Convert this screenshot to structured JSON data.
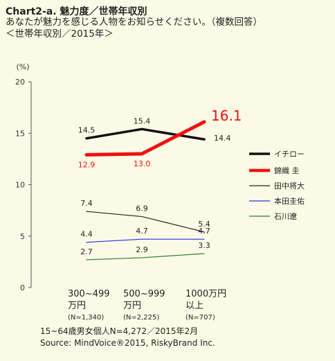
{
  "header": {
    "title": "Chart2-a. 魅力度／世帯年収別",
    "subtitle_line1": "あなたが魅力を感じる人物をお知らせください。（複数回答）",
    "subtitle_line2": "＜世帯年収別／2015年＞"
  },
  "footer": {
    "note": "15~64歳男女個人N=4,272／2015年2月",
    "source": "Source: MindVoice®2015, RiskyBrand Inc."
  },
  "colors": {
    "background": "#fbfae6",
    "axis": "#555555",
    "text": "#222222"
  },
  "chart_data": {
    "type": "line",
    "title": "Chart2-a. 魅力度／世帯年収別",
    "ylabel": "(%)",
    "ylim": [
      0,
      20
    ],
    "yticks": [
      0,
      5,
      10,
      15,
      20
    ],
    "grid": false,
    "legend_position": "right",
    "categories": [
      {
        "line1": "300~499",
        "line2": "万円",
        "n": "(N=1,340)"
      },
      {
        "line1": "500~999",
        "line2": "万円",
        "n": "(N=2,225)"
      },
      {
        "line1": "1000万円",
        "line2": "以上",
        "n": "(N=707)"
      }
    ],
    "series": [
      {
        "name": "イチロー",
        "values": [
          14.5,
          15.4,
          14.4
        ],
        "labels": [
          "14.5",
          "15.4",
          "14.4"
        ],
        "color": "#111111",
        "width": 3.5,
        "label_color": "#222222",
        "label_pos": [
          "above",
          "above",
          "right"
        ]
      },
      {
        "name": "錦織 圭",
        "values": [
          12.9,
          13.0,
          16.1
        ],
        "labels": [
          "12.9",
          "13.0",
          "16.1"
        ],
        "color": "#ee1111",
        "width": 5,
        "label_color": "#ee1111",
        "label_pos": [
          "below",
          "below",
          "bigright"
        ]
      },
      {
        "name": "田中将大",
        "values": [
          7.4,
          6.9,
          5.4
        ],
        "labels": [
          "7.4",
          "6.9",
          "5.4"
        ],
        "color": "#222222",
        "width": 1.2,
        "label_color": "#222222",
        "label_pos": [
          "above",
          "above",
          "above"
        ]
      },
      {
        "name": "本田圭佑",
        "values": [
          4.4,
          4.7,
          4.7
        ],
        "labels": [
          "4.4",
          "4.7",
          "4.7"
        ],
        "color": "#2233dd",
        "width": 1.2,
        "label_color": "#222222",
        "label_pos": [
          "above",
          "above",
          "above"
        ]
      },
      {
        "name": "石川遼",
        "values": [
          2.7,
          2.9,
          3.3
        ],
        "labels": [
          "2.7",
          "2.9",
          "3.3"
        ],
        "color": "#2d7a2d",
        "width": 1.2,
        "label_color": "#222222",
        "label_pos": [
          "above",
          "above",
          "above"
        ]
      }
    ]
  }
}
